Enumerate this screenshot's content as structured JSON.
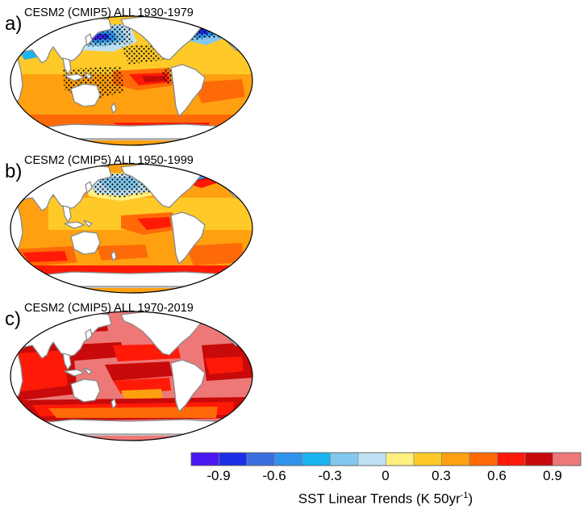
{
  "panels": [
    {
      "id": "a",
      "letter": "a)",
      "title": "CESM2 (CMIP5) ALL 1930-1979",
      "field": "cool_north_pacific_and_atlantic",
      "stippled": true
    },
    {
      "id": "b",
      "letter": "b)",
      "title": "CESM2 (CMIP5) ALL 1950-1999",
      "field": "moderate_warming_cool_north_pacific",
      "stippled": true
    },
    {
      "id": "c",
      "letter": "c)",
      "title": "CESM2 (CMIP5) ALL 1970-2019",
      "field": "strong_warming",
      "stippled": false
    }
  ],
  "colorbar": {
    "title_main": "SST Linear Trends (K 50yr",
    "title_sup": "-1",
    "title_end": ")",
    "tick_labels": [
      "-0.9",
      "-0.6",
      "-0.3",
      "0",
      "0.3",
      "0.6",
      "0.9"
    ],
    "colors": [
      "#4a18f0",
      "#1c2ee6",
      "#3a6ee0",
      "#2f93ec",
      "#1ab4f0",
      "#82c8ee",
      "#bfe0f2",
      "#fff080",
      "#ffca28",
      "#ffa010",
      "#ff6a08",
      "#ff1a08",
      "#c80a0a",
      "#ee7878"
    ],
    "land_color": "#ffffff",
    "coast_color": "#8a8a8a",
    "ice_color": "#c8c8c8"
  }
}
